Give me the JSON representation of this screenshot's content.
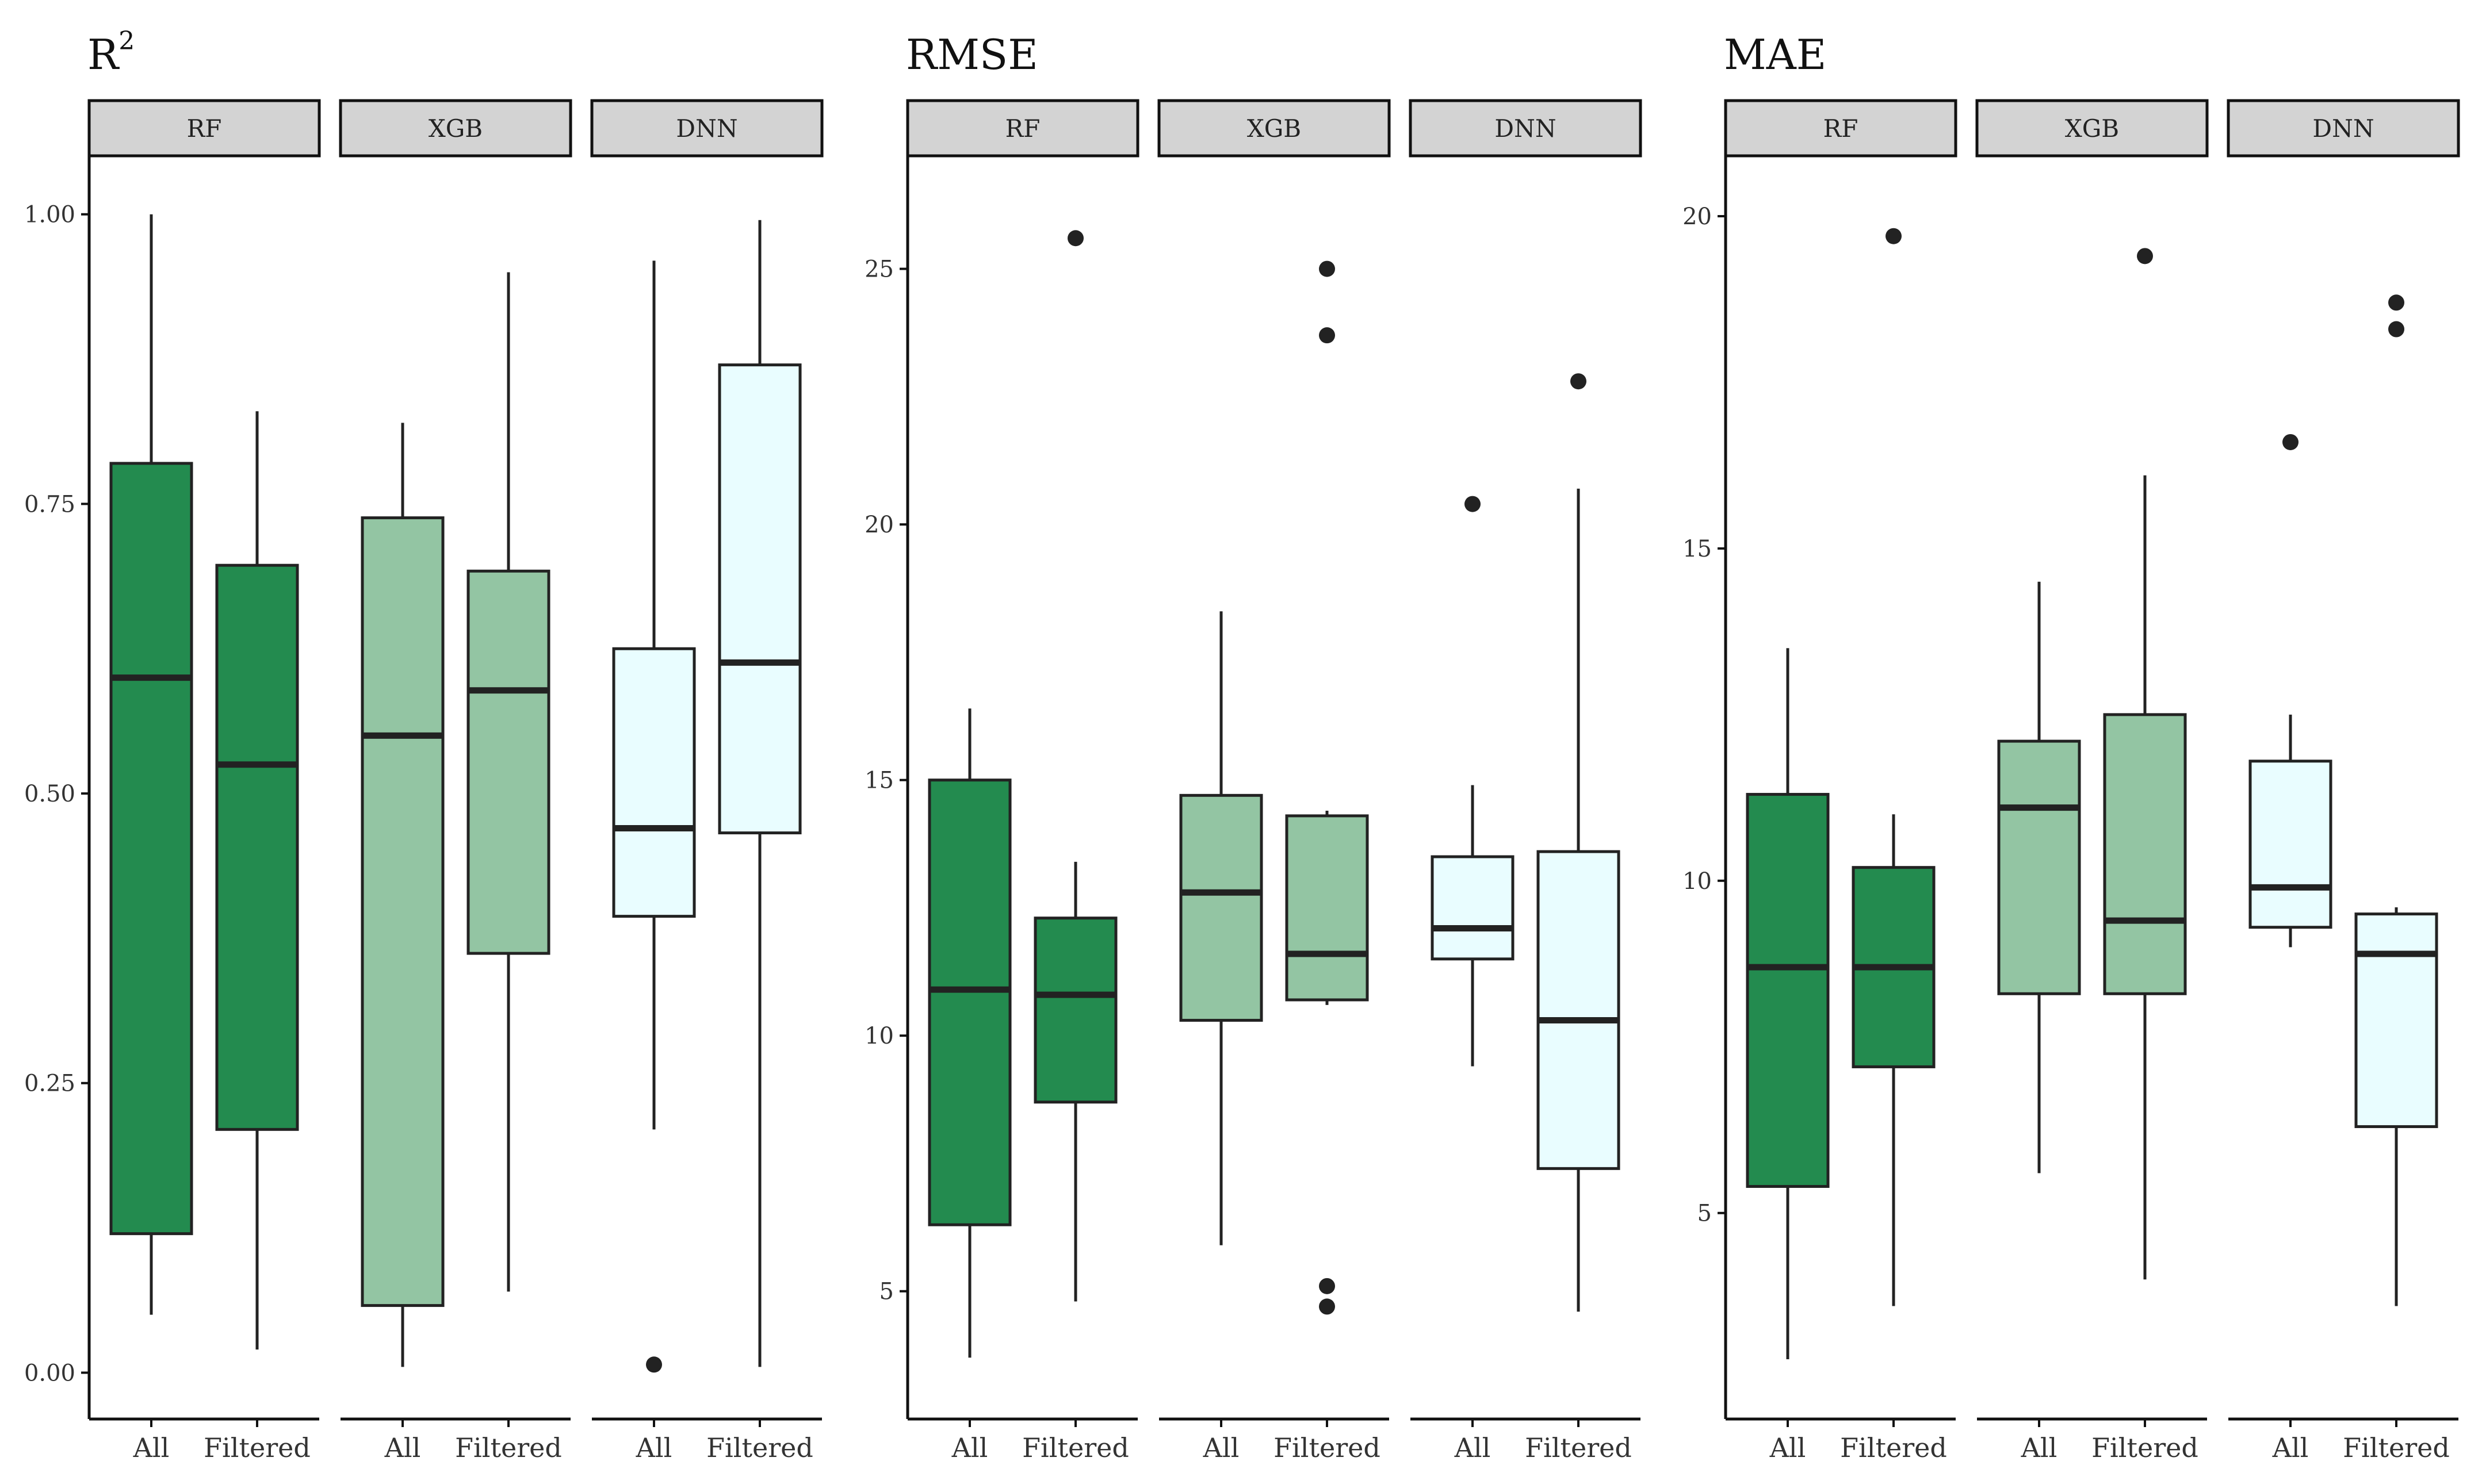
{
  "chart_data": [
    {
      "type": "boxplot",
      "title": "R",
      "title_superscript": "2",
      "ylim": [
        -0.04,
        1.05
      ],
      "yticks": [
        0.0,
        0.25,
        0.5,
        0.75,
        1.0
      ],
      "ytick_labels": [
        "0.00",
        "0.25",
        "0.50",
        "0.75",
        "1.00"
      ],
      "x_categories": [
        "All",
        "Filtered"
      ],
      "facets": [
        {
          "name": "RF",
          "boxes": [
            {
              "group": "All",
              "min": 0.05,
              "q1": 0.12,
              "median": 0.6,
              "q3": 0.785,
              "max": 1.0,
              "outliers": []
            },
            {
              "group": "Filtered",
              "min": 0.02,
              "q1": 0.21,
              "median": 0.525,
              "q3": 0.697,
              "max": 0.83,
              "outliers": []
            }
          ]
        },
        {
          "name": "XGB",
          "boxes": [
            {
              "group": "All",
              "min": 0.005,
              "q1": 0.058,
              "median": 0.55,
              "q3": 0.738,
              "max": 0.82,
              "outliers": []
            },
            {
              "group": "Filtered",
              "min": 0.07,
              "q1": 0.362,
              "median": 0.589,
              "q3": 0.692,
              "max": 0.95,
              "outliers": []
            }
          ]
        },
        {
          "name": "DNN",
          "boxes": [
            {
              "group": "All",
              "min": 0.21,
              "q1": 0.394,
              "median": 0.47,
              "q3": 0.625,
              "max": 0.96,
              "outliers": [
                0.007
              ]
            },
            {
              "group": "Filtered",
              "min": 0.005,
              "q1": 0.466,
              "median": 0.613,
              "q3": 0.87,
              "max": 0.995,
              "outliers": []
            }
          ]
        }
      ]
    },
    {
      "type": "boxplot",
      "title": "RMSE",
      "title_superscript": "",
      "ylim": [
        2.5,
        27.2
      ],
      "yticks": [
        5,
        10,
        15,
        20,
        25
      ],
      "ytick_labels": [
        "5",
        "10",
        "15",
        "20",
        "25"
      ],
      "x_categories": [
        "All",
        "Filtered"
      ],
      "facets": [
        {
          "name": "RF",
          "boxes": [
            {
              "group": "All",
              "min": 3.7,
              "q1": 6.3,
              "median": 10.9,
              "q3": 15.0,
              "max": 16.4,
              "outliers": []
            },
            {
              "group": "Filtered",
              "min": 4.8,
              "q1": 8.7,
              "median": 10.8,
              "q3": 12.3,
              "max": 13.4,
              "outliers": [
                25.6
              ]
            }
          ]
        },
        {
          "name": "XGB",
          "boxes": [
            {
              "group": "All",
              "min": 5.9,
              "q1": 10.3,
              "median": 12.8,
              "q3": 14.7,
              "max": 18.3,
              "outliers": []
            },
            {
              "group": "Filtered",
              "min": 10.6,
              "q1": 10.7,
              "median": 11.6,
              "q3": 14.3,
              "max": 14.4,
              "outliers": [
                25.0,
                23.7,
                5.1,
                4.7
              ]
            }
          ]
        },
        {
          "name": "DNN",
          "boxes": [
            {
              "group": "All",
              "min": 9.4,
              "q1": 11.5,
              "median": 12.1,
              "q3": 13.5,
              "max": 14.9,
              "outliers": [
                20.4
              ]
            },
            {
              "group": "Filtered",
              "min": 4.6,
              "q1": 7.4,
              "median": 10.3,
              "q3": 13.6,
              "max": 20.7,
              "outliers": [
                22.8
              ]
            }
          ]
        }
      ]
    },
    {
      "type": "boxplot",
      "title": "MAE",
      "title_superscript": "",
      "ylim": [
        1.9,
        20.9
      ],
      "yticks": [
        5,
        10,
        15,
        20
      ],
      "ytick_labels": [
        "5",
        "10",
        "15",
        "20"
      ],
      "x_categories": [
        "All",
        "Filtered"
      ],
      "facets": [
        {
          "name": "RF",
          "boxes": [
            {
              "group": "All",
              "min": 2.8,
              "q1": 5.4,
              "median": 8.7,
              "q3": 11.3,
              "max": 13.5,
              "outliers": []
            },
            {
              "group": "Filtered",
              "min": 3.6,
              "q1": 7.2,
              "median": 8.7,
              "q3": 10.2,
              "max": 11.0,
              "outliers": [
                19.7
              ]
            }
          ]
        },
        {
          "name": "XGB",
          "boxes": [
            {
              "group": "All",
              "min": 5.6,
              "q1": 8.3,
              "median": 11.1,
              "q3": 12.1,
              "max": 14.5,
              "outliers": []
            },
            {
              "group": "Filtered",
              "min": 4.0,
              "q1": 8.3,
              "median": 9.4,
              "q3": 12.5,
              "max": 16.1,
              "outliers": [
                19.4
              ]
            }
          ]
        },
        {
          "name": "DNN",
          "boxes": [
            {
              "group": "All",
              "min": 9.0,
              "q1": 9.3,
              "median": 9.9,
              "q3": 11.8,
              "max": 12.5,
              "outliers": [
                16.6
              ]
            },
            {
              "group": "Filtered",
              "min": 3.6,
              "q1": 6.3,
              "median": 8.9,
              "q3": 9.5,
              "max": 9.6,
              "outliers": [
                18.7,
                18.3
              ]
            }
          ]
        }
      ]
    }
  ],
  "colors": {
    "RF": "#238b4f",
    "XGB": "#93c5a3",
    "DNN": "#e9fdff"
  }
}
